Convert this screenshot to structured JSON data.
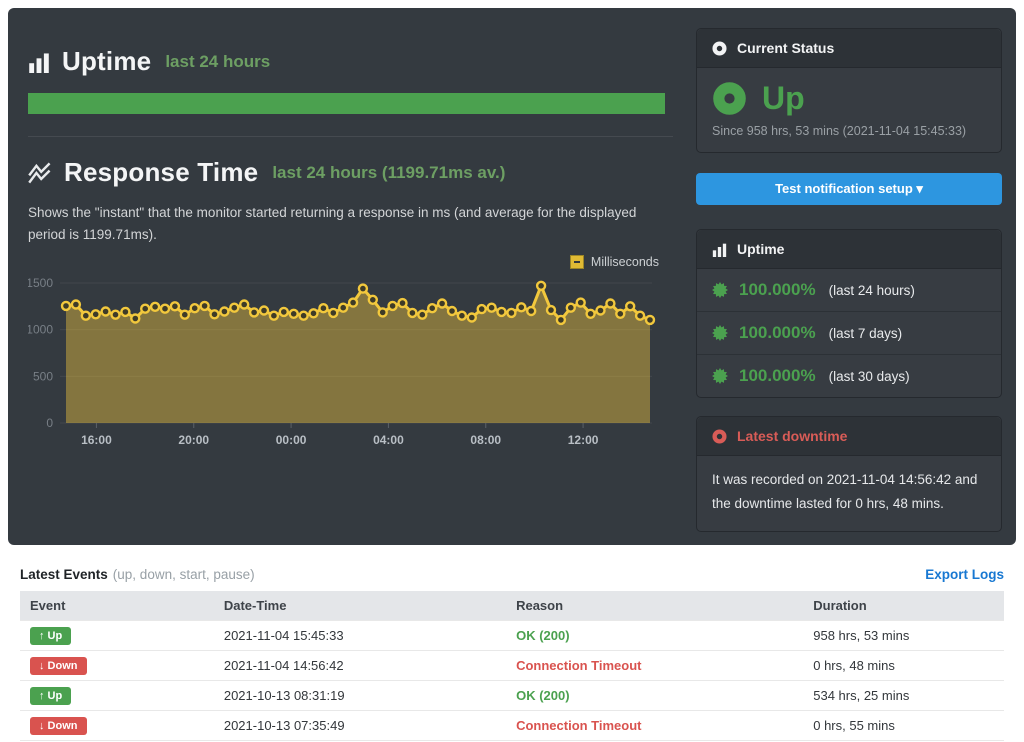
{
  "hero": {
    "uptime_title": "Uptime",
    "uptime_subtitle": "last 24 hours",
    "response_title": "Response Time",
    "response_subtitle": "last 24 hours (1199.71ms av.)",
    "response_description": "Shows the \"instant\" that the monitor started returning a response in ms (and average for the displayed period is 1199.71ms)."
  },
  "sidebar": {
    "current_status": {
      "header": "Current Status",
      "state": "Up",
      "since": "Since 958 hrs, 53 mins (2021-11-04 15:45:33)"
    },
    "notification_button": "Test notification setup",
    "notification_caret": "▾",
    "uptime": {
      "header": "Uptime",
      "stats": [
        {
          "value": "100.000%",
          "period": "(last 24 hours)"
        },
        {
          "value": "100.000%",
          "period": "(last 7 days)"
        },
        {
          "value": "100.000%",
          "period": "(last 30 days)"
        }
      ]
    },
    "latest_downtime": {
      "header": "Latest downtime",
      "text": "It was recorded on 2021-11-04 14:56:42 and the downtime lasted for 0 hrs, 48 mins."
    }
  },
  "events": {
    "title": "Latest Events",
    "subtitle": "(up, down, start, pause)",
    "export_link": "Export Logs",
    "columns": [
      "Event",
      "Date-Time",
      "Reason",
      "Duration"
    ],
    "rows": [
      {
        "type": "up",
        "arrow": "↑",
        "event": "Up",
        "datetime": "2021-11-04 15:45:33",
        "reason": "OK (200)",
        "duration": "958 hrs, 53 mins"
      },
      {
        "type": "down",
        "arrow": "↓",
        "event": "Down",
        "datetime": "2021-11-04 14:56:42",
        "reason": "Connection Timeout",
        "duration": "0 hrs, 48 mins"
      },
      {
        "type": "up",
        "arrow": "↑",
        "event": "Up",
        "datetime": "2021-10-13 08:31:19",
        "reason": "OK (200)",
        "duration": "534 hrs, 25 mins"
      },
      {
        "type": "down",
        "arrow": "↓",
        "event": "Down",
        "datetime": "2021-10-13 07:35:49",
        "reason": "Connection Timeout",
        "duration": "0 hrs, 55 mins"
      }
    ]
  },
  "chart_data": {
    "type": "line",
    "title": "Response Time last 24 hours",
    "legend": "Milliseconds",
    "legend_position": "top-right",
    "grid": true,
    "ylabel": "ms",
    "ylim": [
      0,
      1500
    ],
    "yticks": [
      0,
      500,
      1000,
      1500
    ],
    "x_tick_labels": [
      "16:00",
      "20:00",
      "00:00",
      "04:00",
      "08:00",
      "12:00"
    ],
    "x_tick_hours": [
      1.25,
      5.25,
      9.25,
      13.25,
      17.25,
      21.25
    ],
    "x_range_hours": 24,
    "average_ms": 1199.71,
    "values": [
      1255,
      1270,
      1150,
      1165,
      1195,
      1160,
      1190,
      1120,
      1225,
      1245,
      1225,
      1250,
      1160,
      1230,
      1255,
      1165,
      1195,
      1235,
      1270,
      1185,
      1205,
      1150,
      1190,
      1170,
      1150,
      1175,
      1230,
      1180,
      1235,
      1290,
      1440,
      1320,
      1185,
      1255,
      1285,
      1180,
      1160,
      1230,
      1280,
      1200,
      1150,
      1130,
      1220,
      1235,
      1190,
      1180,
      1240,
      1200,
      1470,
      1210,
      1105,
      1235,
      1290,
      1170,
      1205,
      1280,
      1170,
      1250,
      1150,
      1105
    ]
  },
  "colors": {
    "green": "#4ba14f",
    "green_soft": "#6d9f63",
    "red": "#d9534f",
    "red_soft": "#d95c57",
    "blue": "#2d96e0",
    "link_blue": "#1878d2",
    "chart_line": "#f2c83d",
    "chart_marker_fill": "#3e3b27",
    "chart_grid": "#42474d",
    "panel_bg": "#343a40",
    "card_bg": "#373c42",
    "card_header_bg": "#2d3237",
    "card_border": "#25292e"
  }
}
